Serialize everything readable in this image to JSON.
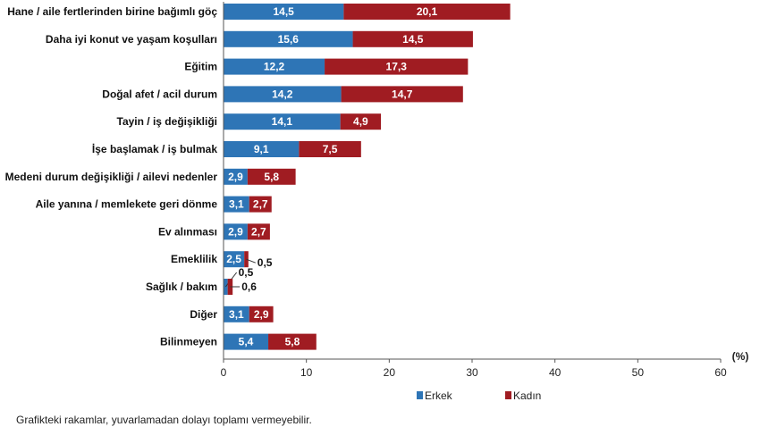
{
  "chart_data": {
    "type": "bar",
    "orientation": "horizontal",
    "stacked": true,
    "categories": [
      "Hane / aile fertlerinden birine bağımlı göç",
      "Daha iyi konut ve yaşam koşulları",
      "Eğitim",
      "Doğal afet / acil durum",
      "Tayin / iş değişikliği",
      "İşe başlamak / iş bulmak",
      "Medeni durum değişikliği / ailevi nedenler",
      "Aile yanına / memlekete geri dönme",
      "Ev alınması",
      "Emeklilik",
      "Sağlık / bakım",
      "Diğer",
      "Bilinmeyen"
    ],
    "series": [
      {
        "name": "Erkek",
        "color": "#2e75b6",
        "values": [
          14.5,
          15.6,
          12.2,
          14.2,
          14.1,
          9.1,
          2.9,
          3.1,
          2.9,
          2.5,
          0.5,
          3.1,
          5.4
        ]
      },
      {
        "name": "Kadın",
        "color": "#a01c22",
        "values": [
          20.1,
          14.5,
          17.3,
          14.7,
          4.9,
          7.5,
          5.8,
          2.7,
          2.7,
          0.5,
          0.6,
          2.9,
          5.8
        ]
      }
    ],
    "xlim": [
      0,
      60
    ],
    "xticks": [
      0,
      10,
      20,
      30,
      40,
      50,
      60
    ],
    "x_unit": "(%)",
    "legend_position": "bottom",
    "grid": false
  },
  "footnote": "Grafikteki rakamlar, yuvarlamadan dolayı toplamı vermeyebilir."
}
